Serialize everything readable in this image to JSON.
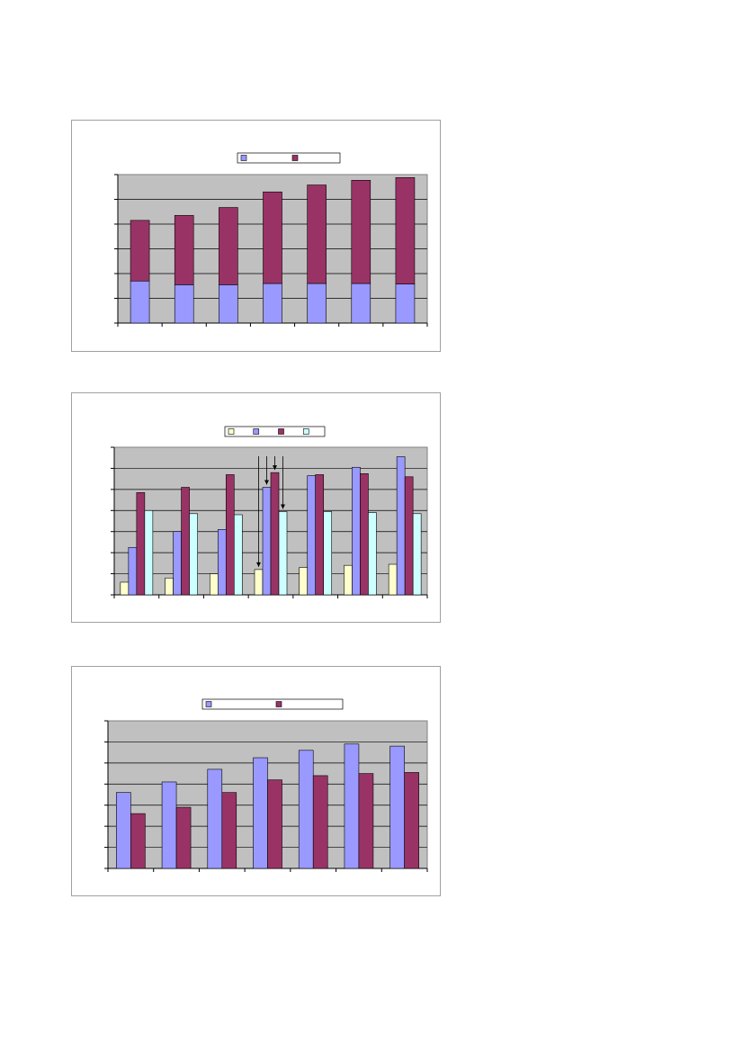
{
  "colors": {
    "plot_bg": "#c0c0c0",
    "grid": "#000000",
    "periwinkle": "#9999ff",
    "plum": "#993366",
    "cream": "#ffffcc",
    "light_cyan": "#ccffff"
  },
  "chart_data": [
    {
      "type": "bar",
      "stacked": true,
      "legend": "top-center",
      "grid": true,
      "ylim": [
        0,
        6
      ],
      "categories": [
        "",
        "",
        "",
        "",
        "",
        "",
        ""
      ],
      "series": [
        {
          "color": "#9999ff",
          "values": [
            1.7,
            1.55,
            1.55,
            1.6,
            1.6,
            1.6,
            1.58
          ]
        },
        {
          "color": "#993366",
          "values": [
            2.45,
            2.8,
            3.12,
            3.7,
            3.98,
            4.17,
            4.3
          ]
        }
      ]
    },
    {
      "type": "bar",
      "stacked": false,
      "legend": "top-center",
      "grid": true,
      "ylim": [
        0,
        7
      ],
      "categories": [
        "",
        "",
        "",
        "",
        "",
        "",
        ""
      ],
      "series": [
        {
          "color": "#ffffcc",
          "values": [
            0.6,
            0.8,
            1.0,
            1.2,
            1.3,
            1.4,
            1.45
          ]
        },
        {
          "color": "#9999ff",
          "values": [
            2.25,
            3.0,
            3.1,
            5.1,
            5.65,
            6.05,
            6.55
          ]
        },
        {
          "color": "#993366",
          "values": [
            4.85,
            5.1,
            5.7,
            5.8,
            5.7,
            5.75,
            5.6
          ]
        },
        {
          "color": "#ccffff",
          "values": [
            4.0,
            3.85,
            3.8,
            3.95,
            3.95,
            3.9,
            3.85
          ]
        }
      ],
      "annotations": [
        {
          "type": "arrow",
          "category_index": 3,
          "series_index": 0
        },
        {
          "type": "arrow",
          "category_index": 3,
          "series_index": 1
        },
        {
          "type": "arrow",
          "category_index": 3,
          "series_index": 2
        },
        {
          "type": "arrow",
          "category_index": 3,
          "series_index": 3
        }
      ]
    },
    {
      "type": "bar",
      "stacked": false,
      "legend": "top-center",
      "grid": true,
      "ylim": [
        0,
        7
      ],
      "categories": [
        "",
        "",
        "",
        "",
        "",
        "",
        ""
      ],
      "series": [
        {
          "color": "#9999ff",
          "values": [
            3.6,
            4.1,
            4.7,
            5.25,
            5.6,
            5.9,
            5.8
          ]
        },
        {
          "color": "#993366",
          "values": [
            2.6,
            2.9,
            3.6,
            4.2,
            4.4,
            4.5,
            4.55
          ]
        }
      ]
    }
  ]
}
